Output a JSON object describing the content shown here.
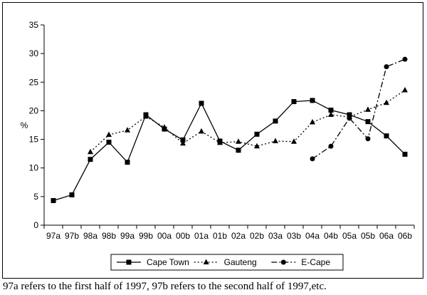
{
  "chart_data": {
    "type": "line",
    "title": "",
    "xlabel": "",
    "ylabel": "%",
    "ylim": [
      0,
      35
    ],
    "yticks": [
      0,
      5,
      10,
      15,
      20,
      25,
      30,
      35
    ],
    "grid": false,
    "legend_position": "bottom",
    "categories": [
      "97a",
      "97b",
      "98a",
      "98b",
      "99a",
      "99b",
      "00a",
      "00b",
      "01a",
      "01b",
      "02a",
      "02b",
      "03a",
      "03b",
      "04a",
      "04b",
      "05a",
      "05b",
      "06a",
      "06b"
    ],
    "series": [
      {
        "name": "Cape Town",
        "marker": "square",
        "line_style": "solid",
        "values": [
          4.3,
          5.3,
          11.5,
          14.5,
          11.0,
          19.3,
          16.8,
          14.9,
          21.3,
          14.7,
          13.1,
          15.9,
          18.2,
          21.6,
          21.8,
          20.1,
          19.3,
          18.1,
          15.6,
          12.4
        ]
      },
      {
        "name": "Gauteng",
        "marker": "triangle",
        "line_style": "dotted",
        "values": [
          null,
          null,
          12.8,
          15.8,
          16.6,
          19.0,
          17.1,
          14.3,
          16.4,
          14.4,
          14.6,
          13.8,
          14.7,
          14.6,
          18.0,
          19.3,
          18.9,
          20.2,
          21.4,
          23.6
        ]
      },
      {
        "name": "E-Cape",
        "marker": "circle",
        "line_style": "dash-dot",
        "values": [
          null,
          null,
          null,
          null,
          null,
          null,
          null,
          null,
          null,
          null,
          null,
          null,
          null,
          null,
          11.6,
          13.8,
          18.7,
          15.1,
          27.7,
          29.0
        ]
      }
    ]
  },
  "caption": "97a refers to the first half of 1997, 97b refers to the second half of 1997,etc."
}
